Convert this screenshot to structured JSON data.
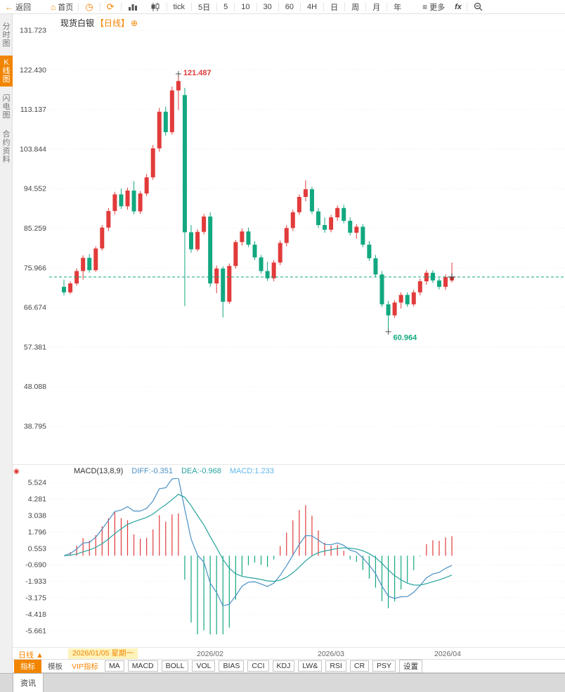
{
  "toolbar": {
    "back": "返回",
    "home": "首页",
    "periods": [
      "tick",
      "5日",
      "5",
      "10",
      "30",
      "60",
      "4H",
      "日",
      "周",
      "月",
      "年"
    ],
    "more": "更多",
    "fx": "fx"
  },
  "icons": {
    "back_arrow": "←",
    "home": "⌂",
    "clock": "◷",
    "refresh": "⟳",
    "more": "≡",
    "add": "⊕",
    "indicator_dot": "◉"
  },
  "sidebar": {
    "items": [
      {
        "label": "分时图",
        "active": false
      },
      {
        "label": "K线图",
        "active": true
      },
      {
        "label": "闪电图",
        "active": false
      },
      {
        "label": "合约资料",
        "active": false
      }
    ]
  },
  "chart_header": {
    "title": "现货白银",
    "period": "【日线】"
  },
  "macd_header": {
    "name": "MACD(13,8,9)",
    "diff": "DIFF:-0.351",
    "dea": "DEA:-0.968",
    "macd": "MACD:1.233"
  },
  "xaxis": {
    "period_selector": "日线 ▲",
    "labels": [
      {
        "text": "2026/01/05 星期一",
        "highlight": true
      },
      {
        "text": "2026/02",
        "highlight": false
      },
      {
        "text": "2026/03",
        "highlight": false
      },
      {
        "text": "2026/04",
        "highlight": false
      }
    ]
  },
  "indicator_tabs": [
    "指标",
    "模板",
    "VIP指标",
    "MA",
    "MACD",
    "BOLL",
    "VOL",
    "BIAS",
    "CCI",
    "KDJ",
    "LW&",
    "RSI",
    "CR",
    "PSY",
    "设置"
  ],
  "bottom_bar": {
    "news_tab": "资讯"
  },
  "colors": {
    "accent": "#f28500",
    "up": "#e23b3b",
    "down": "#12a880",
    "diff_line": "#4a90c4",
    "dea_line": "#27a39d",
    "macd_value": "#62b8e8",
    "highlight_bg": "#fdf3bb"
  },
  "chart_data": [
    {
      "type": "candlestick",
      "title": "现货白银 日线",
      "y_ticks": [
        "131.723",
        "122.430",
        "113.137",
        "103.844",
        "94.552",
        "85.259",
        "75.966",
        "66.674",
        "57.381",
        "48.088",
        "38.795"
      ],
      "ylim": [
        36.5,
        134.0
      ],
      "high_label": "121.487",
      "low_label": "60.964",
      "last_price": 73.8,
      "candles": [
        [
          71.5,
          73.2,
          69.5,
          70.2
        ],
        [
          70.2,
          72.8,
          69.8,
          72.3
        ],
        [
          72.3,
          75.8,
          71.8,
          75.2
        ],
        [
          75.2,
          78.9,
          73.2,
          78.3
        ],
        [
          78.3,
          79.2,
          74.8,
          75.4
        ],
        [
          75.4,
          81.0,
          75.0,
          80.5
        ],
        [
          80.5,
          86.0,
          80.0,
          85.4
        ],
        [
          85.4,
          90.0,
          84.6,
          89.3
        ],
        [
          89.3,
          93.8,
          88.5,
          93.2
        ],
        [
          93.2,
          94.6,
          89.8,
          90.4
        ],
        [
          90.4,
          94.8,
          89.6,
          94.1
        ],
        [
          94.1,
          96.3,
          88.5,
          89.2
        ],
        [
          89.2,
          94.0,
          88.6,
          93.4
        ],
        [
          93.4,
          98.0,
          92.8,
          97.2
        ],
        [
          97.2,
          104.8,
          96.6,
          104.0
        ],
        [
          104.0,
          113.5,
          103.2,
          112.6
        ],
        [
          112.6,
          113.8,
          107.0,
          107.8
        ],
        [
          107.8,
          118.5,
          107.2,
          117.6
        ],
        [
          117.6,
          121.487,
          113.0,
          119.8
        ],
        [
          116.5,
          118.2,
          67.0,
          84.3
        ],
        [
          84.3,
          86.0,
          79.5,
          80.3
        ],
        [
          80.3,
          85.0,
          79.8,
          84.4
        ],
        [
          84.4,
          88.6,
          83.8,
          88.0
        ],
        [
          88.0,
          89.0,
          71.5,
          72.3
        ],
        [
          72.3,
          76.5,
          70.0,
          75.8
        ],
        [
          75.8,
          76.3,
          64.3,
          68.0
        ],
        [
          68.0,
          77.0,
          67.5,
          76.4
        ],
        [
          76.4,
          82.5,
          75.8,
          82.0
        ],
        [
          82.0,
          85.2,
          81.2,
          84.5
        ],
        [
          84.5,
          85.4,
          80.8,
          81.4
        ],
        [
          81.4,
          82.2,
          77.8,
          78.4
        ],
        [
          78.4,
          79.0,
          74.6,
          75.2
        ],
        [
          75.2,
          77.4,
          72.9,
          73.5
        ],
        [
          73.5,
          77.8,
          72.8,
          77.2
        ],
        [
          77.2,
          82.4,
          76.6,
          81.8
        ],
        [
          81.8,
          86.0,
          81.0,
          85.3
        ],
        [
          85.3,
          89.6,
          84.6,
          89.0
        ],
        [
          89.0,
          93.2,
          88.4,
          92.6
        ],
        [
          92.6,
          96.5,
          91.6,
          94.4
        ],
        [
          94.4,
          95.0,
          88.6,
          89.2
        ],
        [
          89.2,
          90.0,
          85.3,
          86.0
        ],
        [
          86.0,
          87.8,
          84.2,
          84.9
        ],
        [
          84.9,
          88.4,
          84.3,
          87.8
        ],
        [
          87.8,
          90.6,
          87.0,
          90.0
        ],
        [
          90.0,
          90.8,
          86.4,
          87.0
        ],
        [
          87.0,
          87.8,
          83.6,
          84.2
        ],
        [
          84.2,
          86.2,
          82.8,
          85.6
        ],
        [
          85.6,
          86.2,
          80.8,
          81.4
        ],
        [
          81.4,
          82.2,
          77.6,
          78.2
        ],
        [
          78.2,
          79.0,
          73.8,
          74.4
        ],
        [
          74.4,
          75.2,
          66.8,
          67.4
        ],
        [
          67.4,
          68.2,
          60.964,
          64.8
        ],
        [
          64.8,
          68.4,
          64.2,
          67.8
        ],
        [
          67.8,
          70.2,
          66.4,
          69.6
        ],
        [
          69.6,
          70.2,
          66.8,
          67.4
        ],
        [
          67.4,
          70.8,
          66.9,
          70.2
        ],
        [
          70.2,
          73.4,
          69.5,
          72.8
        ],
        [
          72.8,
          75.4,
          72.0,
          74.8
        ],
        [
          74.8,
          75.4,
          72.4,
          73.0
        ],
        [
          73.0,
          73.6,
          70.9,
          71.5
        ],
        [
          71.5,
          74.4,
          70.8,
          73.8
        ],
        [
          73.0,
          77.2,
          72.5,
          73.8
        ]
      ]
    },
    {
      "type": "macd",
      "params": "MACD(13,8,9)",
      "y_ticks": [
        "5.524",
        "4.281",
        "3.038",
        "1.796",
        "0.553",
        "-0.690",
        "-1.933",
        "-3.175",
        "-4.418",
        "-5.661"
      ],
      "x_labels": [
        "2026/01/05 星期一",
        "2026/02",
        "2026/03",
        "2026/04"
      ],
      "note": "DIFF/DEA lines and red-green histogram derived from candle closes via EMA(8,13) and signal EMA(9)"
    }
  ]
}
